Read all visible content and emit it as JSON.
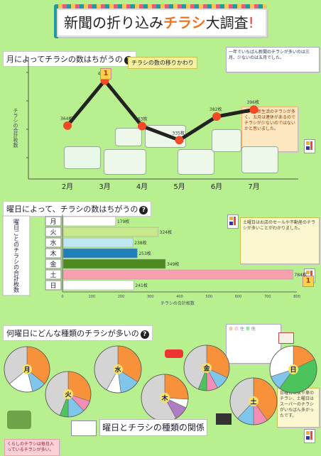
{
  "title": {
    "prefix": "新聞の折り込み",
    "accent": "チラシ",
    "suffix": "大調査",
    "mark": "!"
  },
  "sections": {
    "s1": "月によってチラシの数はちがうの",
    "s2": "曜日によって、チラシの数はちがうの",
    "s3": "何曜日にどんな種類のチラシが多いの"
  },
  "line_chart": {
    "subtitle": "チラシの数の移りかわり",
    "ylabel": "チラシの合計枚数",
    "rank_label": "1"
  },
  "bar_chart": {
    "ylabel": "曜日ごとのチラシの合計枚数",
    "xlabel": "チラシの合計枚数",
    "rank_label": "1"
  },
  "notes": {
    "top_right": "一年でいちばん新聞のチラシが多いのは三月、少ないのは五月でした。",
    "mid_right": "三月は新生活のチラシが多く、五月は連休があるのでチラシが少ないのではないかと思いました。",
    "bar_right": "土曜日はお店のセールや不動産のチラシが多いことがわかりました。",
    "pie_note": "日曜日は家や車のチラシ、土曜日はスーパーのチラシがいちばん多かったです。",
    "bottom_left": "くらしのチラシは毎日入っているチラシが多い。"
  },
  "bottom_caption": "曜日とチラシの種類の関係",
  "legend": {
    "items": [
      "食",
      "衣",
      "住",
      "車",
      "他"
    ]
  },
  "colors": {
    "background": "#b9f08f",
    "line": "#222222",
    "point": "#f24a26",
    "pie_orange": "#f7923a",
    "pie_blue": "#7fc6ea",
    "pie_gray": "#d4d4d4",
    "pie_pink": "#f38fb6",
    "pie_green": "#4cc35c",
    "pie_purple": "#b07cc4",
    "pie_white": "#ffffff"
  },
  "chart_data": [
    {
      "type": "line",
      "title": "月によってチラシの数はちがうの",
      "subtitle": "チラシの数の移りかわり",
      "ylabel": "チラシの合計枚数",
      "categories": [
        "2月",
        "3月",
        "4月",
        "5月",
        "6月",
        "7月"
      ],
      "series": [
        {
          "values": [
            364,
            454,
            363,
            335,
            382,
            396
          ]
        }
      ],
      "data_labels": [
        "364枚",
        "454枚",
        "363枚",
        "335枚",
        "382枚",
        "396枚"
      ],
      "grid": false
    },
    {
      "type": "bar",
      "orientation": "horizontal",
      "title": "曜日によって、チラシの数はちがうの",
      "xlabel": "チラシの合計枚数",
      "ylabel": "曜日ごとのチラシの合計枚数",
      "categories": [
        "月",
        "火",
        "水",
        "木",
        "金",
        "土",
        "日"
      ],
      "values": [
        179,
        324,
        238,
        253,
        349,
        784,
        241
      ],
      "data_labels": [
        "179枚",
        "324枚",
        "238枚",
        "253枚",
        "349枚",
        "784枚",
        "241枚"
      ],
      "xlim": [
        0,
        800
      ],
      "ticks": [
        "0",
        "100",
        "200",
        "300",
        "400",
        "500",
        "600",
        "700",
        "800"
      ],
      "bar_colors": [
        "#ffffff",
        "#c8e98a",
        "#bfe6f2",
        "#1f7fb8",
        "#4d8a1f",
        "#f7a1ae",
        "#ffffff"
      ]
    },
    {
      "type": "pie",
      "title": "何曜日にどんな種類のチラシが多いの",
      "pies": [
        {
          "label": "月",
          "values": [
            0.36,
            0.1,
            0.18,
            0.36
          ],
          "colors": [
            "#f7923a",
            "#7fc6ea",
            "#ffffff",
            "#d4d4d4"
          ]
        },
        {
          "label": "火",
          "values": [
            0.3,
            0.08,
            0.12,
            0.06,
            0.44
          ],
          "colors": [
            "#f7923a",
            "#f38fb6",
            "#7fc6ea",
            "#4cc35c",
            "#d4d4d4"
          ]
        },
        {
          "label": "水",
          "values": [
            0.34,
            0.14,
            0.1,
            0.42
          ],
          "colors": [
            "#f7923a",
            "#7fc6ea",
            "#ffffff",
            "#d4d4d4"
          ]
        },
        {
          "label": "木",
          "values": [
            0.26,
            0.06,
            0.1,
            0.58
          ],
          "colors": [
            "#f7923a",
            "#ffffff",
            "#b07cc4",
            "#d4d4d4"
          ]
        },
        {
          "label": "金",
          "values": [
            0.32,
            0.1,
            0.08,
            0.06,
            0.44
          ],
          "colors": [
            "#f7923a",
            "#7fc6ea",
            "#f38fb6",
            "#4cc35c",
            "#d4d4d4"
          ]
        },
        {
          "label": "土",
          "values": [
            0.4,
            0.1,
            0.12,
            0.38
          ],
          "colors": [
            "#f7923a",
            "#f38fb6",
            "#7fc6ea",
            "#d4d4d4"
          ]
        },
        {
          "label": "日",
          "values": [
            0.18,
            0.42,
            0.1,
            0.3
          ],
          "colors": [
            "#f7923a",
            "#4cc35c",
            "#7fc6ea",
            "#ffffff"
          ]
        }
      ]
    }
  ]
}
